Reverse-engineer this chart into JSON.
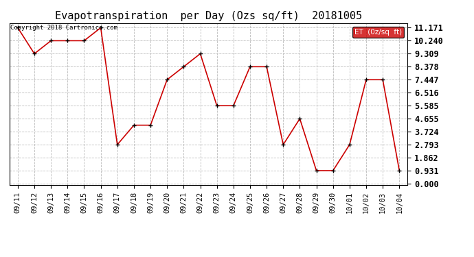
{
  "title": "Evapotranspiration  per Day (Ozs sq/ft)  20181005",
  "x_labels": [
    "09/11",
    "09/12",
    "09/13",
    "09/14",
    "09/15",
    "09/16",
    "09/17",
    "09/18",
    "09/19",
    "09/20",
    "09/21",
    "09/22",
    "09/23",
    "09/24",
    "09/25",
    "09/26",
    "09/27",
    "09/28",
    "09/29",
    "09/30",
    "10/01",
    "10/02",
    "10/03",
    "10/04"
  ],
  "y_values": [
    11.171,
    9.309,
    10.24,
    10.24,
    10.24,
    11.171,
    2.793,
    4.189,
    4.189,
    7.447,
    8.378,
    9.309,
    5.585,
    5.585,
    8.378,
    8.378,
    2.793,
    4.655,
    0.931,
    0.931,
    2.793,
    7.447,
    7.447,
    0.931
  ],
  "y_ticks": [
    0.0,
    0.931,
    1.862,
    2.793,
    3.724,
    4.655,
    5.585,
    6.516,
    7.447,
    8.378,
    9.309,
    10.24,
    11.171
  ],
  "line_color": "#cc0000",
  "marker_color": "#000000",
  "grid_color": "#bbbbbb",
  "background_color": "#ffffff",
  "legend_label": "ET  (0z/sq  ft)",
  "legend_bg": "#cc0000",
  "legend_text_color": "#ffffff",
  "copyright_text": "Copyright 2018 Cartronics.com",
  "copyright_color": "#000000",
  "title_fontsize": 11,
  "tick_fontsize": 7.5,
  "ytick_fontsize": 8.5,
  "copyright_fontsize": 6.5,
  "legend_fontsize": 7.5
}
